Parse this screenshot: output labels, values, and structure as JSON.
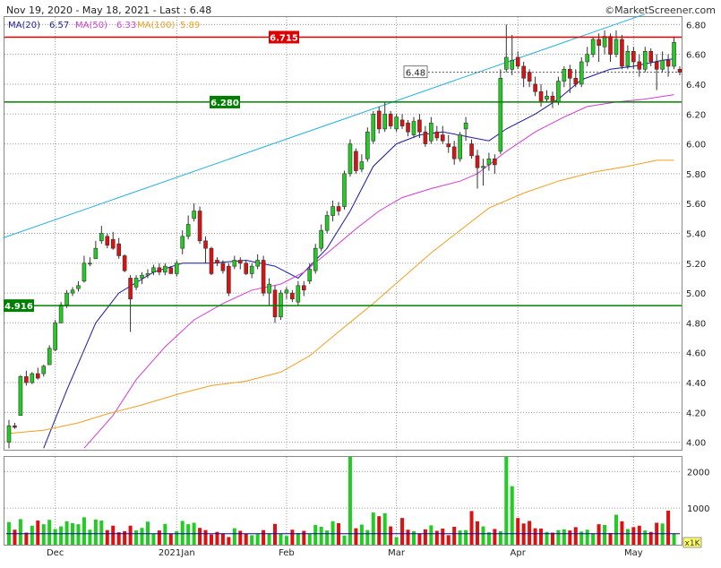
{
  "header": {
    "range_text": "Nov 19, 2020 - May 18, 2021 - Last : 6.48",
    "brand": "©MarketScreener.com"
  },
  "legend": [
    {
      "label": "MA(20)",
      "value": "6.57",
      "color": "#1a1aa6"
    },
    {
      "label": "MA(50)",
      "value": "6.33",
      "color": "#d23cd2"
    },
    {
      "label": "MA(100)",
      "value": "5.89",
      "color": "#f0a020"
    }
  ],
  "colors": {
    "up": "#22cc22",
    "down": "#dd1111",
    "upper_channel": "#25b0e0",
    "resistance": "#dd0000",
    "support": "#008000",
    "volume_avg": "#0000aa"
  },
  "chart_data": {
    "type": "candlestick",
    "ylim": [
      3.95,
      6.85
    ],
    "y_ticks": [
      "4.00",
      "4.20",
      "4.40",
      "4.60",
      "4.80",
      "5.00",
      "5.20",
      "5.40",
      "5.60",
      "5.80",
      "6.00",
      "6.20",
      "6.40",
      "6.60",
      "6.80"
    ],
    "x_ticks": [
      {
        "label": "Dec",
        "i": 8
      },
      {
        "label": "2021Jan",
        "i": 29
      },
      {
        "label": "Feb",
        "i": 48
      },
      {
        "label": "Mar",
        "i": 67
      },
      {
        "label": "Apr",
        "i": 88
      },
      {
        "label": "May",
        "i": 108
      }
    ],
    "last_price": {
      "label": "6.48",
      "value": 6.48
    },
    "levels": [
      {
        "label": "6.715",
        "value": 6.715,
        "kind": "resistance"
      },
      {
        "label": "6.280",
        "value": 6.28,
        "kind": "support"
      },
      {
        "label": "4.916",
        "value": 4.916,
        "kind": "support"
      }
    ],
    "upper_channel": {
      "from_i": -1,
      "from_value": 5.37,
      "to_i": 110,
      "to_value": 6.87
    },
    "ma": [
      {
        "name": "MA(20)",
        "points": [
          [
            6,
            3.96
          ],
          [
            10,
            4.35
          ],
          [
            15,
            4.8
          ],
          [
            19,
            5.0
          ],
          [
            25,
            5.14
          ],
          [
            30,
            5.2
          ],
          [
            35,
            5.2
          ],
          [
            41,
            5.22
          ],
          [
            46,
            5.18
          ],
          [
            50,
            5.1
          ],
          [
            55,
            5.3
          ],
          [
            59,
            5.55
          ],
          [
            63,
            5.85
          ],
          [
            67,
            6.0
          ],
          [
            71,
            6.06
          ],
          [
            75,
            6.08
          ],
          [
            79,
            6.05
          ],
          [
            83,
            6.02
          ],
          [
            86,
            6.1
          ],
          [
            91,
            6.2
          ],
          [
            95,
            6.3
          ],
          [
            99,
            6.43
          ],
          [
            104,
            6.5
          ],
          [
            108,
            6.52
          ],
          [
            113,
            6.56
          ],
          [
            115,
            6.57
          ]
        ]
      },
      {
        "name": "MA(50)",
        "points": [
          [
            13,
            3.96
          ],
          [
            18,
            4.18
          ],
          [
            22,
            4.42
          ],
          [
            27,
            4.64
          ],
          [
            32,
            4.82
          ],
          [
            37,
            4.93
          ],
          [
            42,
            5.02
          ],
          [
            47,
            5.06
          ],
          [
            51,
            5.14
          ],
          [
            56,
            5.3
          ],
          [
            60,
            5.43
          ],
          [
            64,
            5.55
          ],
          [
            68,
            5.64
          ],
          [
            73,
            5.7
          ],
          [
            78,
            5.75
          ],
          [
            81,
            5.8
          ],
          [
            86,
            5.95
          ],
          [
            91,
            6.08
          ],
          [
            96,
            6.18
          ],
          [
            100,
            6.25
          ],
          [
            105,
            6.28
          ],
          [
            110,
            6.3
          ],
          [
            115,
            6.33
          ]
        ]
      },
      {
        "name": "MA(100)",
        "points": [
          [
            0,
            4.06
          ],
          [
            6,
            4.08
          ],
          [
            12,
            4.13
          ],
          [
            17,
            4.19
          ],
          [
            23,
            4.25
          ],
          [
            29,
            4.32
          ],
          [
            35,
            4.38
          ],
          [
            41,
            4.41
          ],
          [
            47,
            4.47
          ],
          [
            52,
            4.58
          ],
          [
            57,
            4.74
          ],
          [
            63,
            4.93
          ],
          [
            68,
            5.1
          ],
          [
            73,
            5.27
          ],
          [
            78,
            5.42
          ],
          [
            83,
            5.57
          ],
          [
            89,
            5.67
          ],
          [
            95,
            5.75
          ],
          [
            101,
            5.81
          ],
          [
            107,
            5.85
          ],
          [
            112,
            5.89
          ],
          [
            115,
            5.89
          ]
        ]
      }
    ],
    "candles": [
      [
        4.0,
        4.11,
        4.15,
        3.96
      ],
      [
        4.11,
        4.1,
        4.13,
        4.09
      ],
      [
        4.18,
        4.44,
        4.45,
        4.18
      ],
      [
        4.44,
        4.4,
        4.48,
        4.38
      ],
      [
        4.4,
        4.46,
        4.47,
        4.39
      ],
      [
        4.46,
        4.43,
        4.5,
        4.42
      ],
      [
        4.46,
        4.51,
        4.52,
        4.44
      ],
      [
        4.52,
        4.63,
        4.65,
        4.52
      ],
      [
        4.62,
        4.8,
        4.82,
        4.61
      ],
      [
        4.8,
        4.92,
        4.94,
        4.8
      ],
      [
        4.92,
        5.0,
        5.02,
        4.9
      ],
      [
        5.0,
        5.02,
        5.04,
        4.98
      ],
      [
        5.03,
        5.05,
        5.08,
        5.01
      ],
      [
        5.08,
        5.2,
        5.25,
        5.07
      ],
      [
        5.2,
        5.2,
        5.24,
        5.18
      ],
      [
        5.23,
        5.3,
        5.35,
        5.23
      ],
      [
        5.35,
        5.4,
        5.45,
        5.33
      ],
      [
        5.38,
        5.32,
        5.4,
        5.3
      ],
      [
        5.36,
        5.3,
        5.41,
        5.29
      ],
      [
        5.33,
        5.25,
        5.37,
        5.23
      ],
      [
        5.25,
        5.15,
        5.26,
        5.14
      ],
      [
        5.1,
        4.96,
        5.12,
        4.74
      ],
      [
        5.04,
        5.1,
        5.12,
        5.02
      ],
      [
        5.1,
        5.12,
        5.14,
        5.06
      ],
      [
        5.12,
        5.13,
        5.16,
        5.1
      ],
      [
        5.14,
        5.17,
        5.19,
        5.12
      ],
      [
        5.17,
        5.14,
        5.2,
        5.12
      ],
      [
        5.14,
        5.18,
        5.2,
        5.12
      ],
      [
        5.17,
        5.13,
        5.18,
        5.13
      ],
      [
        5.13,
        5.2,
        5.22,
        5.11
      ],
      [
        5.3,
        5.38,
        5.42,
        5.26
      ],
      [
        5.38,
        5.46,
        5.52,
        5.36
      ],
      [
        5.5,
        5.55,
        5.6,
        5.48
      ],
      [
        5.55,
        5.35,
        5.58,
        5.33
      ],
      [
        5.35,
        5.3,
        5.38,
        5.2
      ],
      [
        5.3,
        5.13,
        5.31,
        5.12
      ],
      [
        5.22,
        5.2,
        5.24,
        5.18
      ],
      [
        5.2,
        5.15,
        5.22,
        5.13
      ],
      [
        5.18,
        5.0,
        5.2,
        4.98
      ],
      [
        5.18,
        5.22,
        5.25,
        5.16
      ],
      [
        5.22,
        5.2,
        5.24,
        5.16
      ],
      [
        5.2,
        5.13,
        5.22,
        5.12
      ],
      [
        5.13,
        5.18,
        5.2,
        5.1
      ],
      [
        5.18,
        5.22,
        5.26,
        5.16
      ],
      [
        5.22,
        5.0,
        5.25,
        4.98
      ],
      [
        5.0,
        5.06,
        5.1,
        4.92
      ],
      [
        5.02,
        4.84,
        5.05,
        4.8
      ],
      [
        4.84,
        5.0,
        5.02,
        4.82
      ],
      [
        5.0,
        5.02,
        5.04,
        4.96
      ],
      [
        5.0,
        4.96,
        5.02,
        4.94
      ],
      [
        4.94,
        5.05,
        5.08,
        4.92
      ],
      [
        5.05,
        5.02,
        5.08,
        4.98
      ],
      [
        5.08,
        5.16,
        5.2,
        5.06
      ],
      [
        5.15,
        5.3,
        5.33,
        5.13
      ],
      [
        5.3,
        5.42,
        5.46,
        5.28
      ],
      [
        5.42,
        5.52,
        5.55,
        5.4
      ],
      [
        5.52,
        5.58,
        5.62,
        5.48
      ],
      [
        5.58,
        5.55,
        5.61,
        5.52
      ],
      [
        5.58,
        5.8,
        5.82,
        5.56
      ],
      [
        5.8,
        6.0,
        6.03,
        5.78
      ],
      [
        5.95,
        5.82,
        5.97,
        5.8
      ],
      [
        5.83,
        5.88,
        5.93,
        5.81
      ],
      [
        5.9,
        6.08,
        6.11,
        5.88
      ],
      [
        6.02,
        6.2,
        6.22,
        6.0
      ],
      [
        6.22,
        6.1,
        6.25,
        6.07
      ],
      [
        6.1,
        6.2,
        6.28,
        6.08
      ],
      [
        6.2,
        6.12,
        6.22,
        6.1
      ],
      [
        6.1,
        6.18,
        6.2,
        6.08
      ],
      [
        6.16,
        6.12,
        6.2,
        6.1
      ],
      [
        6.14,
        6.08,
        6.16,
        6.05
      ],
      [
        6.06,
        6.15,
        6.18,
        6.04
      ],
      [
        6.16,
        6.08,
        6.2,
        6.04
      ],
      [
        6.08,
        6.0,
        6.12,
        5.98
      ],
      [
        6.02,
        6.14,
        6.18,
        6.0
      ],
      [
        6.08,
        6.04,
        6.12,
        6.02
      ],
      [
        6.06,
        6.02,
        6.12,
        6.0
      ],
      [
        6.0,
        5.98,
        6.06,
        5.94
      ],
      [
        5.98,
        5.9,
        6.02,
        5.86
      ],
      [
        5.9,
        6.06,
        6.08,
        5.88
      ],
      [
        6.1,
        6.14,
        6.18,
        6.02
      ],
      [
        6.0,
        5.92,
        6.03,
        5.9
      ],
      [
        5.92,
        5.84,
        5.96,
        5.7
      ],
      [
        5.84,
        5.85,
        5.9,
        5.72
      ],
      [
        5.86,
        5.9,
        5.94,
        5.82
      ],
      [
        5.9,
        5.86,
        5.93,
        5.8
      ],
      [
        5.95,
        6.44,
        6.5,
        5.93
      ],
      [
        6.5,
        6.58,
        6.8,
        6.48
      ],
      [
        6.5,
        6.56,
        6.73,
        6.46
      ],
      [
        6.58,
        6.52,
        6.62,
        6.5
      ],
      [
        6.52,
        6.44,
        6.55,
        6.38
      ],
      [
        6.48,
        6.42,
        6.5,
        6.38
      ],
      [
        6.4,
        6.35,
        6.45,
        6.32
      ],
      [
        6.35,
        6.28,
        6.4,
        6.25
      ],
      [
        6.3,
        6.32,
        6.36,
        6.28
      ],
      [
        6.32,
        6.28,
        6.35,
        6.24
      ],
      [
        6.28,
        6.42,
        6.45,
        6.26
      ],
      [
        6.42,
        6.5,
        6.52,
        6.38
      ],
      [
        6.5,
        6.44,
        6.53,
        6.34
      ],
      [
        6.44,
        6.4,
        6.5,
        6.38
      ],
      [
        6.4,
        6.55,
        6.58,
        6.38
      ],
      [
        6.55,
        6.6,
        6.65,
        6.52
      ],
      [
        6.6,
        6.7,
        6.72,
        6.58
      ],
      [
        6.7,
        6.66,
        6.74,
        6.55
      ],
      [
        6.65,
        6.72,
        6.76,
        6.6
      ],
      [
        6.72,
        6.6,
        6.74,
        6.55
      ],
      [
        6.6,
        6.7,
        6.76,
        6.58
      ],
      [
        6.7,
        6.52,
        6.73,
        6.5
      ],
      [
        6.52,
        6.62,
        6.66,
        6.5
      ],
      [
        6.62,
        6.55,
        6.65,
        6.5
      ],
      [
        6.55,
        6.5,
        6.6,
        6.45
      ],
      [
        6.5,
        6.62,
        6.65,
        6.48
      ],
      [
        6.62,
        6.55,
        6.64,
        6.52
      ],
      [
        6.55,
        6.5,
        6.6,
        6.36
      ],
      [
        6.5,
        6.56,
        6.62,
        6.48
      ],
      [
        6.56,
        6.52,
        6.6,
        6.45
      ],
      [
        6.52,
        6.68,
        6.72,
        6.5
      ],
      [
        6.5,
        6.48,
        6.52,
        6.46
      ]
    ],
    "volume_ylim": [
      0,
      2400
    ],
    "volume_ticks": [
      {
        "label": "2000",
        "value": 2000
      },
      {
        "label": "1000",
        "value": 1000
      }
    ],
    "volume_unit": "x1K",
    "volume_avg": 300,
    "volume": [
      620,
      410,
      700,
      330,
      520,
      660,
      560,
      680,
      430,
      500,
      640,
      590,
      560,
      750,
      410,
      690,
      660,
      400,
      520,
      340,
      370,
      520,
      390,
      460,
      630,
      300,
      390,
      570,
      310,
      370,
      650,
      560,
      600,
      460,
      400,
      280,
      350,
      310,
      210,
      450,
      380,
      300,
      260,
      290,
      400,
      310,
      570,
      300,
      240,
      410,
      320,
      380,
      290,
      540,
      490,
      390,
      640,
      590,
      250,
      2600,
      450,
      550,
      400,
      880,
      780,
      860,
      500,
      210,
      730,
      410,
      370,
      310,
      420,
      530,
      380,
      440,
      260,
      490,
      390,
      400,
      920,
      640,
      500,
      340,
      430,
      370,
      2700,
      1600,
      730,
      580,
      650,
      450,
      440,
      350,
      330,
      400,
      420,
      390,
      480,
      360,
      410,
      310,
      560,
      540,
      320,
      820,
      640,
      430,
      480,
      520,
      390,
      350,
      600,
      580,
      930,
      300
    ]
  }
}
